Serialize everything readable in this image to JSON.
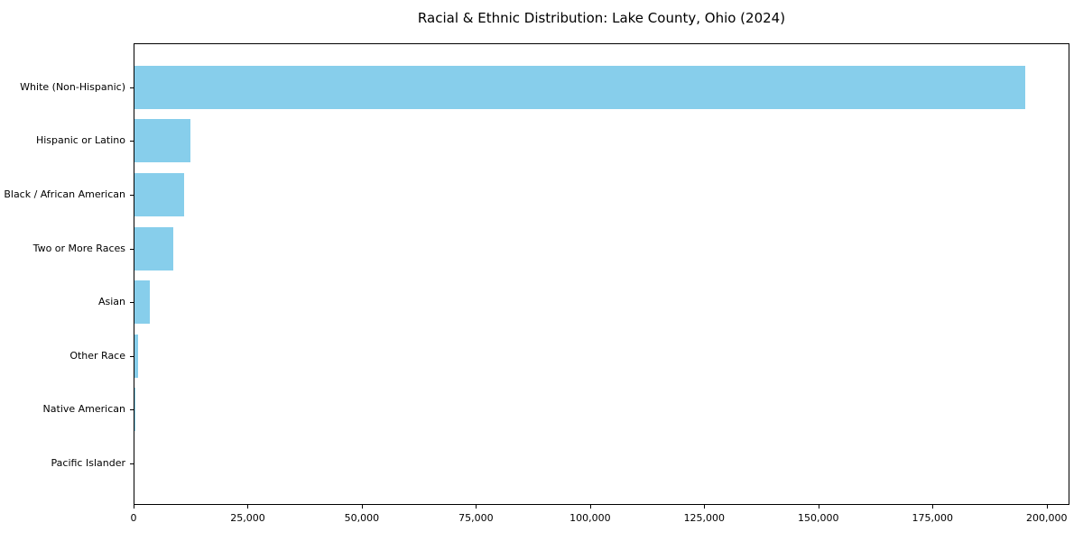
{
  "figure": {
    "background": "#ffffff",
    "text_color": "#000000"
  },
  "chart_data": {
    "type": "bar",
    "orientation": "horizontal",
    "title": "Racial & Ethnic Distribution: Lake County, Ohio (2024)",
    "categories": [
      "White (Non-Hispanic)",
      "Hispanic or Latino",
      "Black / African American",
      "Two or More Races",
      "Asian",
      "Other Race",
      "Native American",
      "Pacific Islander"
    ],
    "values": [
      195300,
      12500,
      11100,
      8700,
      3600,
      1000,
      400,
      50
    ],
    "bar_color": "#87CEEB",
    "xlabel": "",
    "ylabel": "",
    "xlim": [
      0,
      205000
    ],
    "x_ticks": [
      0,
      25000,
      50000,
      75000,
      100000,
      125000,
      150000,
      175000,
      200000
    ],
    "x_tick_labels": [
      "0",
      "25,000",
      "50,000",
      "75,000",
      "100,000",
      "125,000",
      "150,000",
      "175,000",
      "200,000"
    ],
    "grid": false,
    "legend": false
  }
}
